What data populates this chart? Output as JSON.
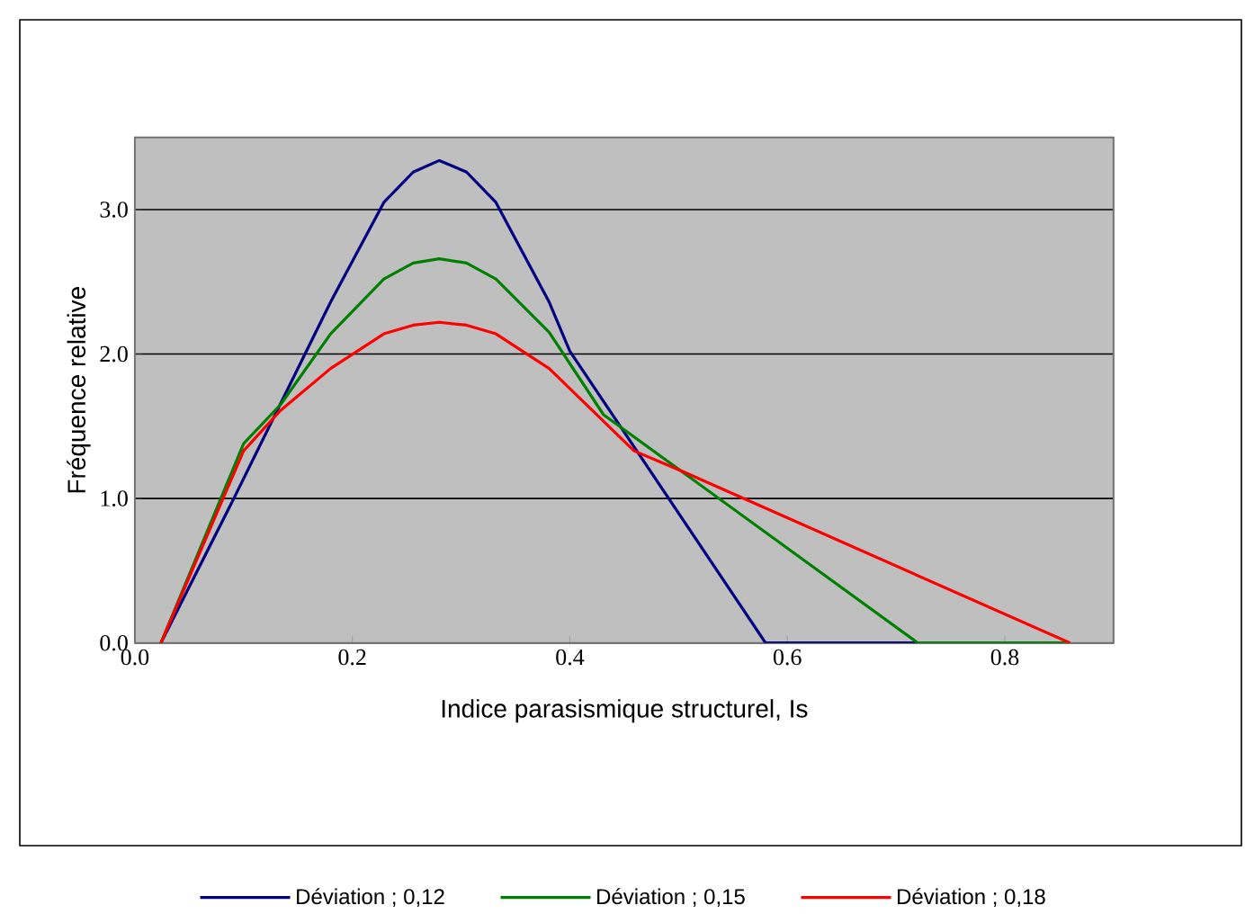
{
  "chart_data": {
    "type": "line",
    "xlabel": "Indice parasismique structurel, Is",
    "ylabel": "Fréquence relative",
    "xlim": [
      0,
      0.9
    ],
    "ylim": [
      0,
      3.5
    ],
    "xticks": [
      {
        "value": 0,
        "label": "0.0"
      },
      {
        "value": 0.2,
        "label": "0.2"
      },
      {
        "value": 0.4,
        "label": "0.4"
      },
      {
        "value": 0.6,
        "label": "0.6"
      },
      {
        "value": 0.8,
        "label": "0.8"
      }
    ],
    "yticks": [
      {
        "value": 0,
        "label": "0.0"
      },
      {
        "value": 1,
        "label": "1.0"
      },
      {
        "value": 2,
        "label": "2.0"
      },
      {
        "value": 3,
        "label": "3.0"
      }
    ],
    "grid": "y",
    "legend": "bottom",
    "marker": "none",
    "line_style": "solid",
    "series": [
      {
        "name": "Déviation ; 0,12",
        "color": "#000080",
        "x": [
          0.024,
          0.091,
          0.18,
          0.229,
          0.256,
          0.28,
          0.305,
          0.332,
          0.381,
          0.4,
          0.45,
          0.58,
          0.72
        ],
        "values": [
          0,
          1.0,
          2.36,
          3.05,
          3.26,
          3.34,
          3.26,
          3.05,
          2.36,
          2.02,
          1.46,
          0,
          0
        ]
      },
      {
        "name": "Déviation ; 0,15",
        "color": "#008000",
        "x": [
          0.024,
          0.1,
          0.134,
          0.18,
          0.229,
          0.256,
          0.28,
          0.305,
          0.332,
          0.381,
          0.431,
          0.72,
          0.86
        ],
        "values": [
          0,
          1.38,
          1.65,
          2.14,
          2.52,
          2.63,
          2.66,
          2.63,
          2.52,
          2.15,
          1.58,
          0,
          0
        ]
      },
      {
        "name": "Déviation ; 0,18",
        "color": "#ff0000",
        "x": [
          0.024,
          0.1,
          0.134,
          0.18,
          0.229,
          0.256,
          0.28,
          0.305,
          0.332,
          0.381,
          0.459,
          0.506,
          0.86
        ],
        "values": [
          0,
          1.33,
          1.61,
          1.9,
          2.14,
          2.2,
          2.22,
          2.2,
          2.14,
          1.9,
          1.33,
          1.18,
          0
        ]
      }
    ]
  }
}
